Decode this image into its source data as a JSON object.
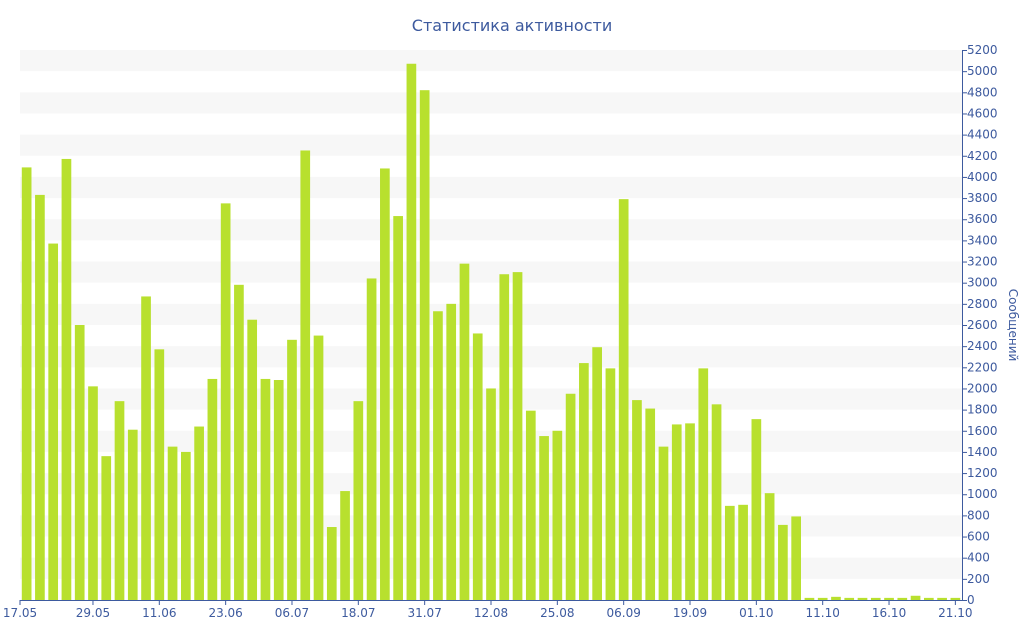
{
  "chart_data": {
    "type": "bar",
    "title": "Статистика активности",
    "ylabel": "Сообщений",
    "ylim": [
      0,
      5200
    ],
    "y_tick_step": 200,
    "grid": "horizontal-bands",
    "colors": {
      "bar": "#b8e02e",
      "band": "#f7f7f7",
      "text": "#3d5a9e",
      "axis": "#3d5a9e"
    },
    "x_tick_labels": [
      {
        "index": 0,
        "label": "17.05"
      },
      {
        "index": 5,
        "label": "29.05"
      },
      {
        "index": 10,
        "label": "11.06"
      },
      {
        "index": 15,
        "label": "23.06"
      },
      {
        "index": 20,
        "label": "06.07"
      },
      {
        "index": 25,
        "label": "18.07"
      },
      {
        "index": 30,
        "label": "31.07"
      },
      {
        "index": 35,
        "label": "12.08"
      },
      {
        "index": 40,
        "label": "25.08"
      },
      {
        "index": 45,
        "label": "06.09"
      },
      {
        "index": 50,
        "label": "19.09"
      },
      {
        "index": 55,
        "label": "01.10"
      },
      {
        "index": 60,
        "label": "11.10"
      },
      {
        "index": 65,
        "label": "16.10"
      },
      {
        "index": 70,
        "label": "21.10"
      }
    ],
    "values": [
      4090,
      3830,
      3370,
      4170,
      2600,
      2020,
      1360,
      1880,
      1610,
      2870,
      2370,
      1450,
      1400,
      1640,
      2090,
      3750,
      2980,
      2650,
      2090,
      2080,
      2460,
      4250,
      2500,
      690,
      1030,
      1880,
      3040,
      4080,
      3630,
      5070,
      4820,
      2730,
      2800,
      3180,
      2520,
      2000,
      3080,
      3100,
      1790,
      1550,
      1600,
      1950,
      2240,
      2390,
      2190,
      3790,
      1890,
      1810,
      1450,
      1660,
      1670,
      2190,
      1850,
      890,
      900,
      1710,
      1010,
      710,
      790,
      20,
      20,
      30,
      20,
      20,
      20,
      20,
      20,
      40,
      20,
      20,
      20
    ]
  }
}
